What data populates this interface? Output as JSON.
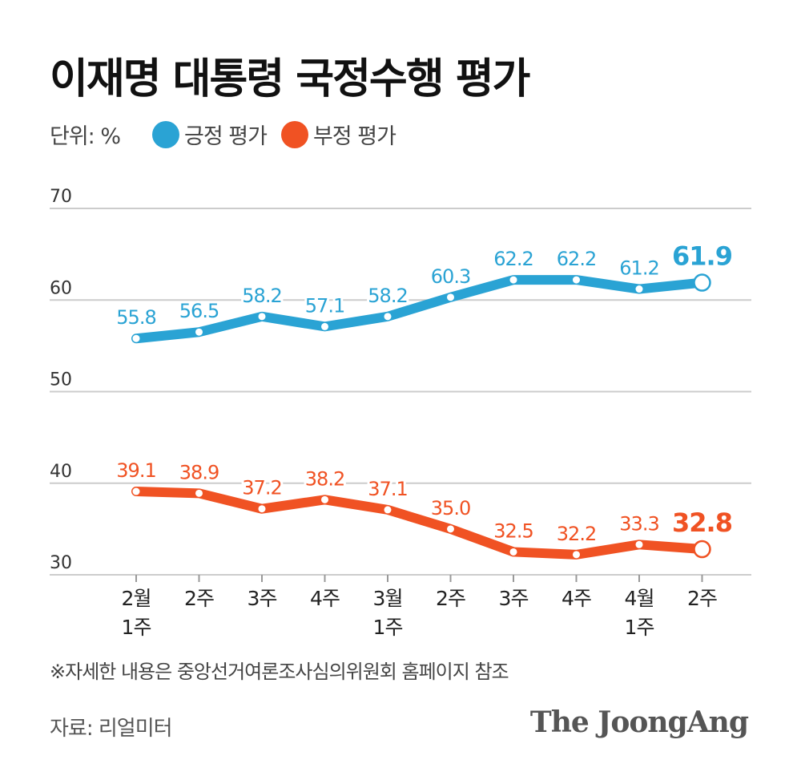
{
  "title": "이재명 대통령 국정수행 평가",
  "unit_label": "단위: %",
  "legend": {
    "positive": "긍정 평가",
    "negative": "부정 평가"
  },
  "colors": {
    "positive": "#2aa3d4",
    "negative": "#f05223",
    "grid": "#cccccc",
    "axis_text": "#333333",
    "title": "#111111"
  },
  "chart_data": {
    "type": "line",
    "title": "이재명 대통령 국정수행 평가",
    "xlabel": "",
    "ylabel": "단위: %",
    "ylim": [
      30,
      70
    ],
    "yticks": [
      70,
      60,
      50,
      40,
      30
    ],
    "grid": true,
    "categories": [
      [
        "2월",
        "1주"
      ],
      [
        "2주"
      ],
      [
        "3주"
      ],
      [
        "4주"
      ],
      [
        "3월",
        "1주"
      ],
      [
        "2주"
      ],
      [
        "3주"
      ],
      [
        "4주"
      ],
      [
        "4월",
        "1주"
      ],
      [
        "2주"
      ]
    ],
    "series": [
      {
        "name": "긍정 평가",
        "key": "positive",
        "values": [
          55.8,
          56.5,
          58.2,
          57.1,
          58.2,
          60.3,
          62.2,
          62.2,
          61.2,
          61.9
        ],
        "labels": [
          "55.8",
          "56.5",
          "58.2",
          "57.1",
          "58.2",
          "60.3",
          "62.2",
          "62.2",
          "61.2",
          "61.9"
        ]
      },
      {
        "name": "부정 평가",
        "key": "negative",
        "values": [
          39.1,
          38.9,
          37.2,
          38.2,
          37.1,
          35.0,
          32.5,
          32.2,
          33.3,
          32.8
        ],
        "labels": [
          "39.1",
          "38.9",
          "37.2",
          "38.2",
          "37.1",
          "35.0",
          "32.5",
          "32.2",
          "33.3",
          "32.8"
        ]
      }
    ]
  },
  "note": "※자세한 내용은 중앙선거여론조사심의위원회 홈페이지 참조",
  "source": "자료: 리얼미터",
  "brand": "The JoongAng"
}
